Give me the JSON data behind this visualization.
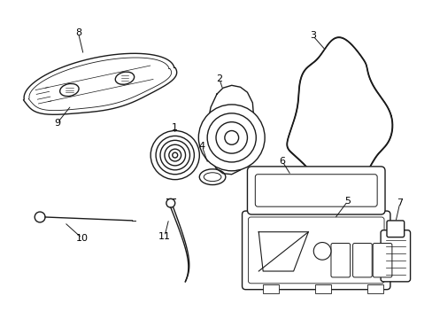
{
  "bg_color": "#ffffff",
  "line_color": "#1a1a1a",
  "line_width": 1.0,
  "label_fontsize": 8,
  "figsize": [
    4.89,
    3.6
  ],
  "dpi": 100
}
